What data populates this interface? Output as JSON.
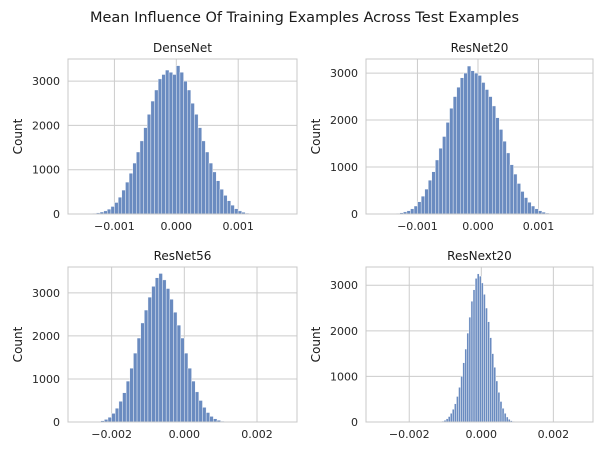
{
  "figure": {
    "title": "Mean Influence Of Training Examples Across Test Examples"
  },
  "chart_data": [
    {
      "type": "bar",
      "title": "DenseNet",
      "xlabel": "",
      "ylabel": "Count",
      "xlim": [
        -0.00175,
        0.00195
      ],
      "ylim": [
        0,
        3500
      ],
      "xticks": [
        -0.001,
        0.0,
        0.001
      ],
      "xtick_labels": [
        "−0.001",
        "0.000",
        "0.001"
      ],
      "yticks": [
        0,
        1000,
        2000,
        3000
      ],
      "ytick_labels": [
        "0",
        "1000",
        "2000",
        "3000"
      ],
      "bin_start": -0.00135,
      "bin_width": 5.87e-05,
      "counts": [
        15,
        25,
        45,
        70,
        110,
        170,
        260,
        380,
        540,
        720,
        920,
        1150,
        1400,
        1650,
        1950,
        2250,
        2550,
        2800,
        3050,
        3150,
        3250,
        3200,
        3150,
        3350,
        3200,
        3000,
        2800,
        2500,
        2250,
        1950,
        1650,
        1400,
        1150,
        950,
        750,
        560,
        420,
        300,
        200,
        120,
        70,
        40,
        20,
        10
      ]
    },
    {
      "type": "bar",
      "title": "ResNet20",
      "xlabel": "",
      "ylabel": "Count",
      "xlim": [
        -0.00185,
        0.0019
      ],
      "ylim": [
        0,
        3300
      ],
      "xticks": [
        -0.001,
        0.0,
        0.001
      ],
      "xtick_labels": [
        "−0.001",
        "0.000",
        "0.001"
      ],
      "yticks": [
        0,
        1000,
        2000,
        3000
      ],
      "ytick_labels": [
        "0",
        "1000",
        "2000",
        "3000"
      ],
      "bin_start": -0.00135,
      "bin_width": 5.87e-05,
      "counts": [
        15,
        25,
        45,
        70,
        110,
        170,
        260,
        380,
        530,
        720,
        900,
        1150,
        1400,
        1650,
        1950,
        2250,
        2500,
        2700,
        2900,
        3000,
        3150,
        3050,
        3000,
        2950,
        2800,
        2650,
        2500,
        2300,
        2050,
        1800,
        1550,
        1300,
        1050,
        850,
        650,
        480,
        350,
        250,
        170,
        110,
        70,
        40,
        20,
        10
      ]
    },
    {
      "type": "bar",
      "title": "ResNet56",
      "xlabel": "",
      "ylabel": "Count",
      "xlim": [
        -0.0032,
        0.0031
      ],
      "ylim": [
        0,
        3600
      ],
      "xticks": [
        -0.002,
        0.0,
        0.002
      ],
      "xtick_labels": [
        "−0.002",
        "0.000",
        "0.002"
      ],
      "yticks": [
        0,
        1000,
        2000,
        3000
      ],
      "ytick_labels": [
        "0",
        "1000",
        "2000",
        "3000"
      ],
      "bin_start": -0.0023,
      "bin_width": 0.0001,
      "counts": [
        30,
        60,
        110,
        200,
        320,
        480,
        680,
        950,
        1250,
        1600,
        1950,
        2300,
        2600,
        2900,
        3150,
        3350,
        3450,
        3300,
        3100,
        2850,
        2550,
        2250,
        1950,
        1600,
        1250,
        950,
        700,
        500,
        340,
        220,
        130,
        75,
        40,
        20
      ]
    },
    {
      "type": "bar",
      "title": "ResNext20",
      "xlabel": "",
      "ylabel": "Count",
      "xlim": [
        -0.0032,
        0.0031
      ],
      "ylim": [
        0,
        3400
      ],
      "xticks": [
        -0.002,
        0.0,
        0.002
      ],
      "xtick_labels": [
        "−0.002",
        "0.000",
        "0.002"
      ],
      "yticks": [
        0,
        1000,
        2000,
        3000
      ],
      "ytick_labels": [
        "0",
        "1000",
        "2000",
        "3000"
      ],
      "bin_start": -0.00115,
      "bin_width": 5.75e-05,
      "counts": [
        10,
        20,
        40,
        70,
        120,
        190,
        280,
        400,
        560,
        760,
        1000,
        1300,
        1600,
        1950,
        2300,
        2650,
        2900,
        3150,
        3250,
        3200,
        3050,
        2800,
        2500,
        2200,
        1850,
        1500,
        1200,
        900,
        650,
        450,
        300,
        190,
        110,
        60,
        30,
        15
      ]
    }
  ]
}
